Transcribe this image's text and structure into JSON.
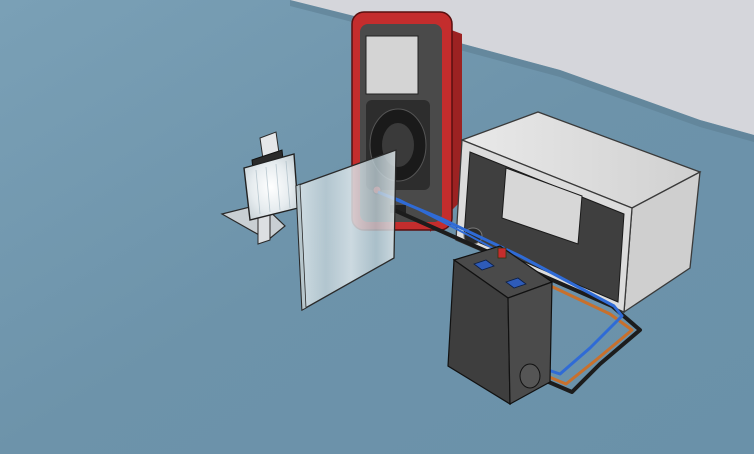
{
  "colors": {
    "floor": "#6f95ac",
    "floor_shade": "#5f8296",
    "wall": "#d7d7dc",
    "multimeter_body": "#c42d2d",
    "multimeter_dark": "#4a4a4a",
    "multimeter_screen": "#d4d4d4",
    "power_supply_casing": "#dcdcdc",
    "power_supply_front": "#3f3f3f",
    "power_supply_screen": "#d7d7d7",
    "battery_box": "#3e3e3e",
    "terminal_color": "#2e5bb8",
    "wire_blue": "#2f6bd6",
    "wire_orange": "#c8702c",
    "wire_black": "#1c1c1c",
    "glass_plate": "#d2dde2",
    "lamp_panel": "#eef2f4"
  },
  "components": [
    {
      "name": "light-source",
      "icon": "lamp-icon"
    },
    {
      "name": "glass-plate",
      "icon": "glass-sheet-icon"
    },
    {
      "name": "multimeter",
      "icon": "multimeter-icon"
    },
    {
      "name": "power-supply",
      "icon": "power-supply-icon"
    },
    {
      "name": "battery-box",
      "icon": "battery-icon"
    }
  ]
}
